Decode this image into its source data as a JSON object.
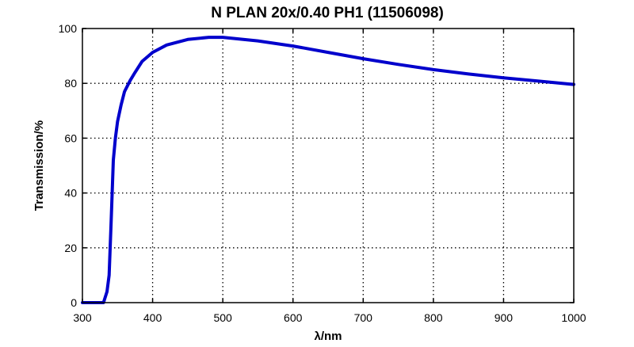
{
  "chart_data": {
    "type": "line",
    "title": "N PLAN 20x/0.40 PH1 (11506098)",
    "xlabel": "λ/nm",
    "ylabel": "Transmission/%",
    "xlim": [
      300,
      1000
    ],
    "ylim": [
      0,
      100
    ],
    "xticks": [
      300,
      400,
      500,
      600,
      700,
      800,
      900,
      1000
    ],
    "yticks": [
      0,
      20,
      40,
      60,
      80,
      100
    ],
    "grid": true,
    "grid_style": "dotted",
    "legend": null,
    "series": [
      {
        "name": "Transmission",
        "color": "#0000cc",
        "x": [
          300,
          320,
          330,
          335,
          338,
          341,
          344,
          347,
          350,
          355,
          360,
          368,
          375,
          385,
          400,
          420,
          450,
          480,
          500,
          550,
          600,
          650,
          700,
          750,
          800,
          850,
          900,
          950,
          1000
        ],
        "y": [
          0,
          0,
          0,
          4,
          10,
          30,
          52,
          60,
          66,
          72,
          77,
          81,
          84,
          88,
          91.3,
          94,
          96,
          96.8,
          96.8,
          95.5,
          93.6,
          91.3,
          89.0,
          86.9,
          85.0,
          83.4,
          82.0,
          80.8,
          79.6
        ]
      }
    ]
  }
}
